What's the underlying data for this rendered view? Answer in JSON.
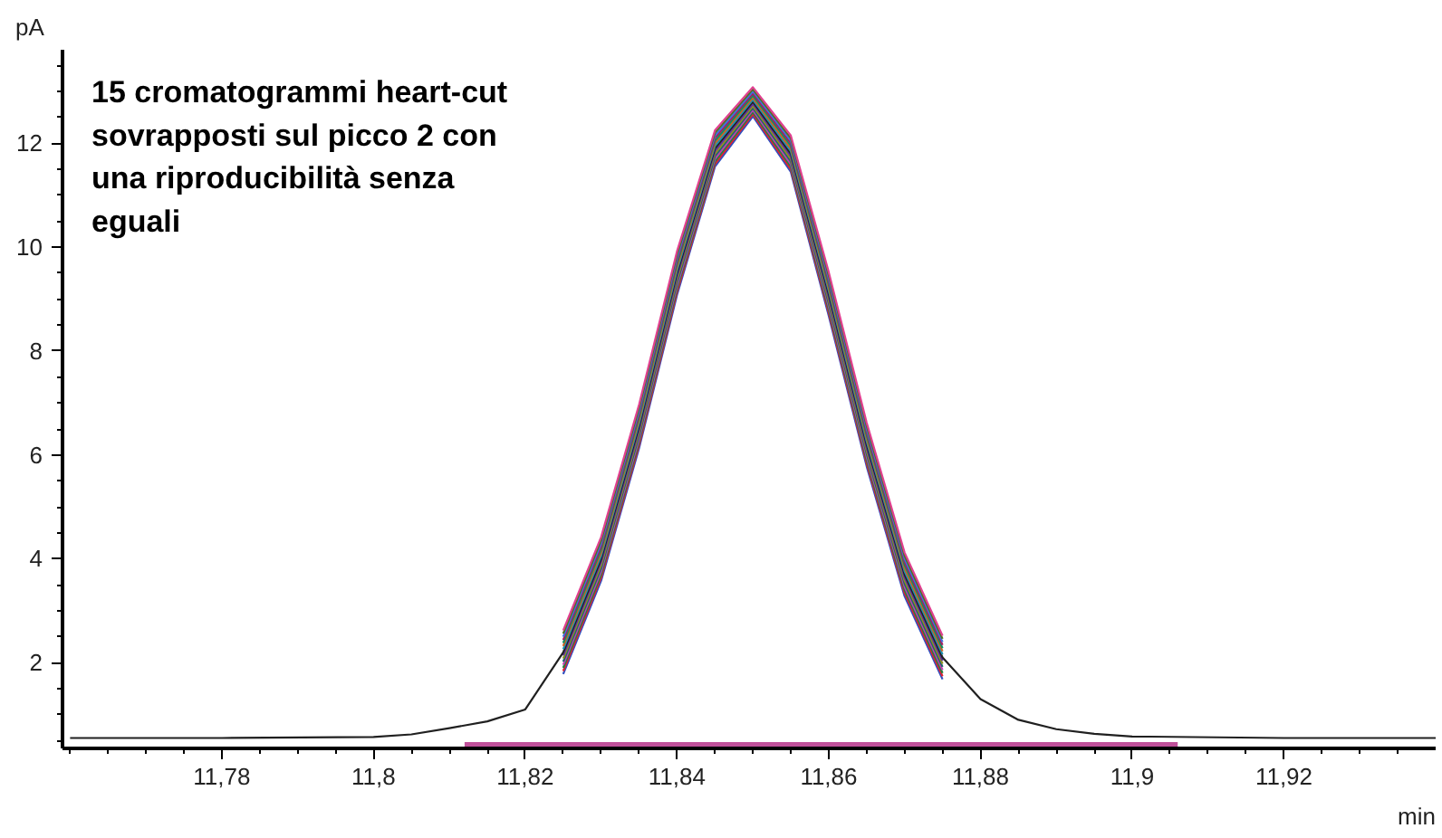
{
  "chart_data": {
    "type": "line",
    "xlabel": "min",
    "ylabel": "pA",
    "annotations": [
      "15 cromatogrammi heart-cut\nsovrapposti sul picco 2 con\nuna riproducibilità senza\neguali"
    ],
    "xlim": [
      11.759,
      11.94
    ],
    "ylim": [
      0.35,
      13.8
    ],
    "xticks": [
      {
        "value": 11.78,
        "label": "11,78"
      },
      {
        "value": 11.8,
        "label": "11,8"
      },
      {
        "value": 11.82,
        "label": "11,82"
      },
      {
        "value": 11.84,
        "label": "11,84"
      },
      {
        "value": 11.86,
        "label": "11,86"
      },
      {
        "value": 11.88,
        "label": "11,88"
      },
      {
        "value": 11.9,
        "label": "11,9"
      },
      {
        "value": 11.92,
        "label": "11,92"
      }
    ],
    "yticks": [
      2,
      4,
      6,
      8,
      10,
      12
    ],
    "grid": false,
    "marker": "none",
    "line_style": "solid",
    "x": [
      11.76,
      11.78,
      11.8,
      11.805,
      11.81,
      11.815,
      11.82,
      11.825,
      11.83,
      11.835,
      11.84,
      11.845,
      11.85,
      11.855,
      11.86,
      11.865,
      11.87,
      11.875,
      11.88,
      11.885,
      11.89,
      11.895,
      11.9,
      11.92,
      11.94
    ],
    "series": [
      {
        "color": "#3050c0",
        "values": [
          null,
          null,
          null,
          null,
          null,
          null,
          null,
          1.78,
          3.58,
          6.13,
          9.08,
          11.55,
          12.52,
          11.45,
          8.68,
          5.78,
          3.28,
          1.68,
          null,
          null,
          null,
          null,
          null,
          null,
          null
        ]
      },
      {
        "color": "#e02030",
        "values": [
          null,
          null,
          null,
          null,
          null,
          null,
          null,
          1.84,
          3.64,
          6.19,
          9.14,
          11.6,
          12.56,
          11.5,
          8.74,
          5.84,
          3.34,
          1.74,
          null,
          null,
          null,
          null,
          null,
          null,
          null
        ]
      },
      {
        "color": "#208040",
        "values": [
          null,
          null,
          null,
          null,
          null,
          null,
          null,
          1.9,
          3.7,
          6.25,
          9.2,
          11.65,
          12.6,
          11.55,
          8.8,
          5.9,
          3.4,
          1.8,
          null,
          null,
          null,
          null,
          null,
          null,
          null
        ]
      },
      {
        "color": "#c040b0",
        "values": [
          null,
          null,
          null,
          null,
          null,
          null,
          null,
          1.96,
          3.76,
          6.31,
          9.26,
          11.7,
          12.64,
          11.6,
          8.86,
          5.96,
          3.46,
          1.86,
          null,
          null,
          null,
          null,
          null,
          null,
          null
        ]
      },
      {
        "color": "#206070",
        "values": [
          null,
          null,
          null,
          null,
          null,
          null,
          null,
          2.02,
          3.82,
          6.37,
          9.32,
          11.75,
          12.68,
          11.65,
          8.92,
          6.02,
          3.52,
          1.92,
          null,
          null,
          null,
          null,
          null,
          null,
          null
        ]
      },
      {
        "color": "#909020",
        "values": [
          null,
          null,
          null,
          null,
          null,
          null,
          null,
          2.08,
          3.88,
          6.43,
          9.38,
          11.8,
          12.72,
          11.7,
          8.98,
          6.08,
          3.58,
          1.98,
          null,
          null,
          null,
          null,
          null,
          null,
          null
        ]
      },
      {
        "color": "#6030a0",
        "values": [
          null,
          null,
          null,
          null,
          null,
          null,
          null,
          2.14,
          3.94,
          6.49,
          9.44,
          11.85,
          12.76,
          11.75,
          9.04,
          6.14,
          3.64,
          2.04,
          null,
          null,
          null,
          null,
          null,
          null,
          null
        ]
      },
      {
        "color": "#202020",
        "values": [
          0.55,
          0.55,
          0.57,
          0.62,
          0.74,
          0.87,
          1.1,
          2.2,
          4.0,
          6.55,
          9.5,
          11.9,
          12.8,
          11.8,
          9.1,
          6.2,
          3.7,
          2.1,
          1.3,
          0.9,
          0.72,
          0.63,
          0.58,
          0.55,
          0.55
        ]
      },
      {
        "color": "#2090b0",
        "values": [
          null,
          null,
          null,
          null,
          null,
          null,
          null,
          2.26,
          4.06,
          6.61,
          9.56,
          11.95,
          12.84,
          11.85,
          9.16,
          6.26,
          3.76,
          2.16,
          null,
          null,
          null,
          null,
          null,
          null,
          null
        ]
      },
      {
        "color": "#d06020",
        "values": [
          null,
          null,
          null,
          null,
          null,
          null,
          null,
          2.32,
          4.12,
          6.67,
          9.62,
          12.0,
          12.88,
          11.9,
          9.22,
          6.32,
          3.82,
          2.22,
          null,
          null,
          null,
          null,
          null,
          null,
          null
        ]
      },
      {
        "color": "#109060",
        "values": [
          null,
          null,
          null,
          null,
          null,
          null,
          null,
          2.38,
          4.18,
          6.73,
          9.68,
          12.05,
          12.92,
          11.95,
          9.28,
          6.38,
          3.88,
          2.28,
          null,
          null,
          null,
          null,
          null,
          null,
          null
        ]
      },
      {
        "color": "#a02060",
        "values": [
          null,
          null,
          null,
          null,
          null,
          null,
          null,
          2.44,
          4.24,
          6.79,
          9.74,
          12.1,
          12.96,
          12.0,
          9.34,
          6.44,
          3.94,
          2.34,
          null,
          null,
          null,
          null,
          null,
          null,
          null
        ]
      },
      {
        "color": "#4070e0",
        "values": [
          null,
          null,
          null,
          null,
          null,
          null,
          null,
          2.5,
          4.3,
          6.85,
          9.8,
          12.15,
          13.0,
          12.05,
          9.4,
          6.5,
          4.0,
          2.4,
          null,
          null,
          null,
          null,
          null,
          null,
          null
        ]
      },
      {
        "color": "#507020",
        "values": [
          null,
          null,
          null,
          null,
          null,
          null,
          null,
          2.56,
          4.36,
          6.91,
          9.86,
          12.2,
          13.04,
          12.1,
          9.46,
          6.56,
          4.06,
          2.46,
          null,
          null,
          null,
          null,
          null,
          null,
          null
        ]
      },
      {
        "color": "#e04090",
        "values": [
          null,
          null,
          null,
          null,
          null,
          null,
          null,
          2.62,
          4.42,
          6.97,
          9.92,
          12.25,
          13.08,
          12.15,
          9.52,
          6.62,
          4.12,
          2.52,
          null,
          null,
          null,
          null,
          null,
          null,
          null
        ]
      },
      {
        "color": "#c0509a",
        "x": [
          11.812,
          11.906
        ],
        "values": [
          0.42,
          0.42
        ]
      }
    ]
  }
}
